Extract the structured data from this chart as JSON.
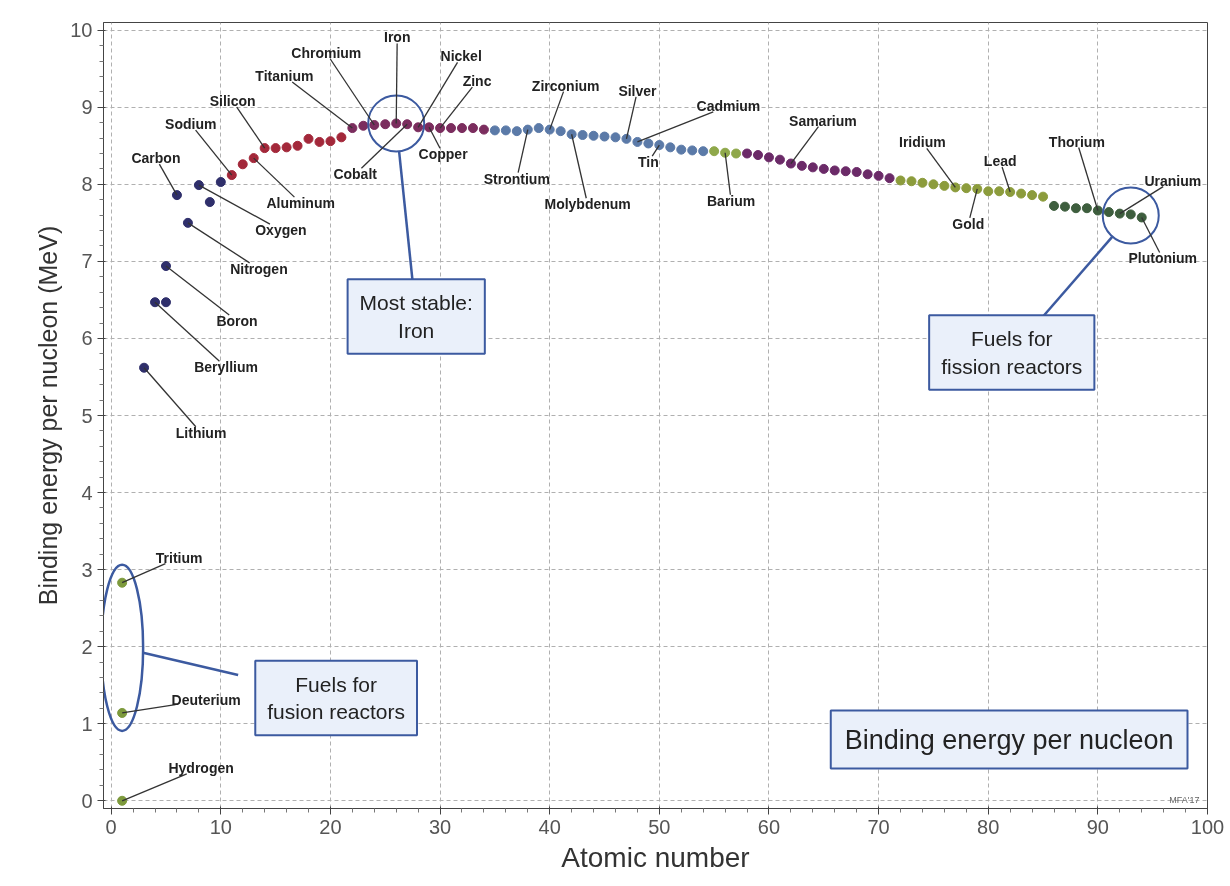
{
  "chart_data": {
    "type": "scatter",
    "title": "Binding energy per nucleon",
    "xlabel": "Atomic number",
    "ylabel": "Binding energy per nucleon (MeV)",
    "xlim": [
      -0.7,
      100
    ],
    "ylim": [
      -0.1,
      10.1
    ],
    "xticks": [
      0,
      10,
      20,
      30,
      40,
      50,
      60,
      70,
      80,
      90,
      100
    ],
    "yticks": [
      0,
      1,
      2,
      3,
      4,
      5,
      6,
      7,
      8,
      9,
      10
    ],
    "grid": true,
    "marker": "circle",
    "x": [
      1,
      1,
      1,
      3,
      4,
      5,
      5,
      6,
      7,
      8,
      9,
      10,
      11,
      12,
      13,
      14,
      15,
      16,
      17,
      18,
      19,
      20,
      21,
      22,
      23,
      24,
      25,
      26,
      27,
      28,
      29,
      30,
      31,
      32,
      33,
      34,
      35,
      36,
      37,
      38,
      39,
      40,
      41,
      42,
      43,
      44,
      45,
      46,
      47,
      48,
      49,
      50,
      51,
      52,
      53,
      54,
      55,
      56,
      57,
      58,
      59,
      60,
      61,
      62,
      63,
      64,
      65,
      66,
      67,
      68,
      69,
      70,
      71,
      72,
      73,
      74,
      75,
      76,
      77,
      78,
      79,
      80,
      81,
      82,
      83,
      84,
      85,
      86,
      87,
      88,
      89,
      90,
      91,
      92,
      93,
      94
    ],
    "values": [
      0,
      1.14,
      2.83,
      5.62,
      6.47,
      6.47,
      6.94,
      7.86,
      7.5,
      7.99,
      7.77,
      8.03,
      8.12,
      8.26,
      8.34,
      8.47,
      8.47,
      8.48,
      8.5,
      8.59,
      8.55,
      8.56,
      8.61,
      8.73,
      8.76,
      8.77,
      8.78,
      8.79,
      8.78,
      8.74,
      8.74,
      8.73,
      8.73,
      8.73,
      8.73,
      8.71,
      8.7,
      8.7,
      8.69,
      8.71,
      8.73,
      8.71,
      8.69,
      8.65,
      8.64,
      8.63,
      8.62,
      8.61,
      8.59,
      8.55,
      8.53,
      8.51,
      8.48,
      8.45,
      8.44,
      8.43,
      8.43,
      8.41,
      8.4,
      8.4,
      8.38,
      8.35,
      8.32,
      8.27,
      8.24,
      8.22,
      8.2,
      8.18,
      8.17,
      8.16,
      8.13,
      8.11,
      8.08,
      8.05,
      8.04,
      8.02,
      8,
      7.98,
      7.96,
      7.95,
      7.94,
      7.91,
      7.91,
      7.9,
      7.88,
      7.86,
      7.84,
      7.72,
      7.71,
      7.69,
      7.69,
      7.66,
      7.64,
      7.62,
      7.61,
      7.57
    ],
    "colors": [
      "#7d9a3c",
      "#7d9a3c",
      "#7d9a3c",
      "#2f2f6b",
      "#2f2f6b",
      "#2f2f6b",
      "#2f2f6b",
      "#2f2f6b",
      "#2f2f6b",
      "#2f2f6b",
      "#2f2f6b",
      "#2f2f6b",
      "#a3283a",
      "#a3283a",
      "#a3283a",
      "#a3283a",
      "#a3283a",
      "#a3283a",
      "#a3283a",
      "#a3283a",
      "#a3283a",
      "#a3283a",
      "#a3283a",
      "#7b2d5e",
      "#7b2d5e",
      "#7b2d5e",
      "#7b2d5e",
      "#7b2d5e",
      "#7b2d5e",
      "#7b2d5e",
      "#7b2d5e",
      "#7b2d5e",
      "#7b2d5e",
      "#7b2d5e",
      "#7b2d5e",
      "#7b2d5e",
      "#5b7aa8",
      "#5b7aa8",
      "#5b7aa8",
      "#5b7aa8",
      "#5b7aa8",
      "#5b7aa8",
      "#5b7aa8",
      "#5b7aa8",
      "#5b7aa8",
      "#5b7aa8",
      "#5b7aa8",
      "#5b7aa8",
      "#5b7aa8",
      "#5b7aa8",
      "#5b7aa8",
      "#5b7aa8",
      "#5b7aa8",
      "#5b7aa8",
      "#5b7aa8",
      "#5b7aa8",
      "#8fa84a",
      "#8fa84a",
      "#8fa84a",
      "#6b2a68",
      "#6b2a68",
      "#6b2a68",
      "#6b2a68",
      "#6b2a68",
      "#6b2a68",
      "#6b2a68",
      "#6b2a68",
      "#6b2a68",
      "#6b2a68",
      "#6b2a68",
      "#6b2a68",
      "#6b2a68",
      "#6b2a68",
      "#8c9c3c",
      "#8c9c3c",
      "#8c9c3c",
      "#8c9c3c",
      "#8c9c3c",
      "#8c9c3c",
      "#8c9c3c",
      "#8c9c3c",
      "#8c9c3c",
      "#8c9c3c",
      "#8c9c3c",
      "#8c9c3c",
      "#8c9c3c",
      "#8c9c3c",
      "#3e5e3e",
      "#3e5e3e",
      "#3e5e3e",
      "#3e5e3e",
      "#3e5e3e",
      "#3e5e3e",
      "#3e5e3e",
      "#3e5e3e",
      "#3e5e3e"
    ],
    "annotations": [
      {
        "text": "Hydrogen",
        "x": 1,
        "y": 0
      },
      {
        "text": "Deuterium",
        "x": 1,
        "y": 1.14
      },
      {
        "text": "Tritium",
        "x": 1,
        "y": 2.83
      },
      {
        "text": "Lithium",
        "x": 3,
        "y": 5.62
      },
      {
        "text": "Beryllium",
        "x": 4,
        "y": 6.47
      },
      {
        "text": "Boron",
        "x": 5,
        "y": 6.94
      },
      {
        "text": "Nitrogen",
        "x": 7,
        "y": 7.5
      },
      {
        "text": "Carbon",
        "x": 6,
        "y": 7.86
      },
      {
        "text": "Oxygen",
        "x": 8,
        "y": 7.99
      },
      {
        "text": "Sodium",
        "x": 11,
        "y": 8.12
      },
      {
        "text": "Aluminum",
        "x": 13,
        "y": 8.34
      },
      {
        "text": "Silicon",
        "x": 14,
        "y": 8.47
      },
      {
        "text": "Titanium",
        "x": 22,
        "y": 8.73
      },
      {
        "text": "Chromium",
        "x": 24,
        "y": 8.77
      },
      {
        "text": "Iron",
        "x": 26,
        "y": 8.79
      },
      {
        "text": "Nickel",
        "x": 28,
        "y": 8.74
      },
      {
        "text": "Zinc",
        "x": 30,
        "y": 8.73
      },
      {
        "text": "Cobalt",
        "x": 27,
        "y": 8.78
      },
      {
        "text": "Copper",
        "x": 29,
        "y": 8.74
      },
      {
        "text": "Strontium",
        "x": 38,
        "y": 8.71
      },
      {
        "text": "Zirconium",
        "x": 40,
        "y": 8.71
      },
      {
        "text": "Molybdenum",
        "x": 42,
        "y": 8.65
      },
      {
        "text": "Silver",
        "x": 47,
        "y": 8.59
      },
      {
        "text": "Cadmium",
        "x": 48,
        "y": 8.55
      },
      {
        "text": "Tin",
        "x": 50,
        "y": 8.51
      },
      {
        "text": "Barium",
        "x": 56,
        "y": 8.41
      },
      {
        "text": "Samarium",
        "x": 62,
        "y": 8.27
      },
      {
        "text": "Iridium",
        "x": 77,
        "y": 7.96
      },
      {
        "text": "Gold",
        "x": 79,
        "y": 7.94
      },
      {
        "text": "Lead",
        "x": 82,
        "y": 7.9
      },
      {
        "text": "Thorium",
        "x": 90,
        "y": 7.66
      },
      {
        "text": "Uranium",
        "x": 92,
        "y": 7.62
      },
      {
        "text": "Plutonium",
        "x": 94,
        "y": 7.57
      },
      "Most stable:\nIron",
      "Fuels for\nfission reactors",
      "Fuels for\nfusion reactors",
      "MFA'17"
    ]
  }
}
